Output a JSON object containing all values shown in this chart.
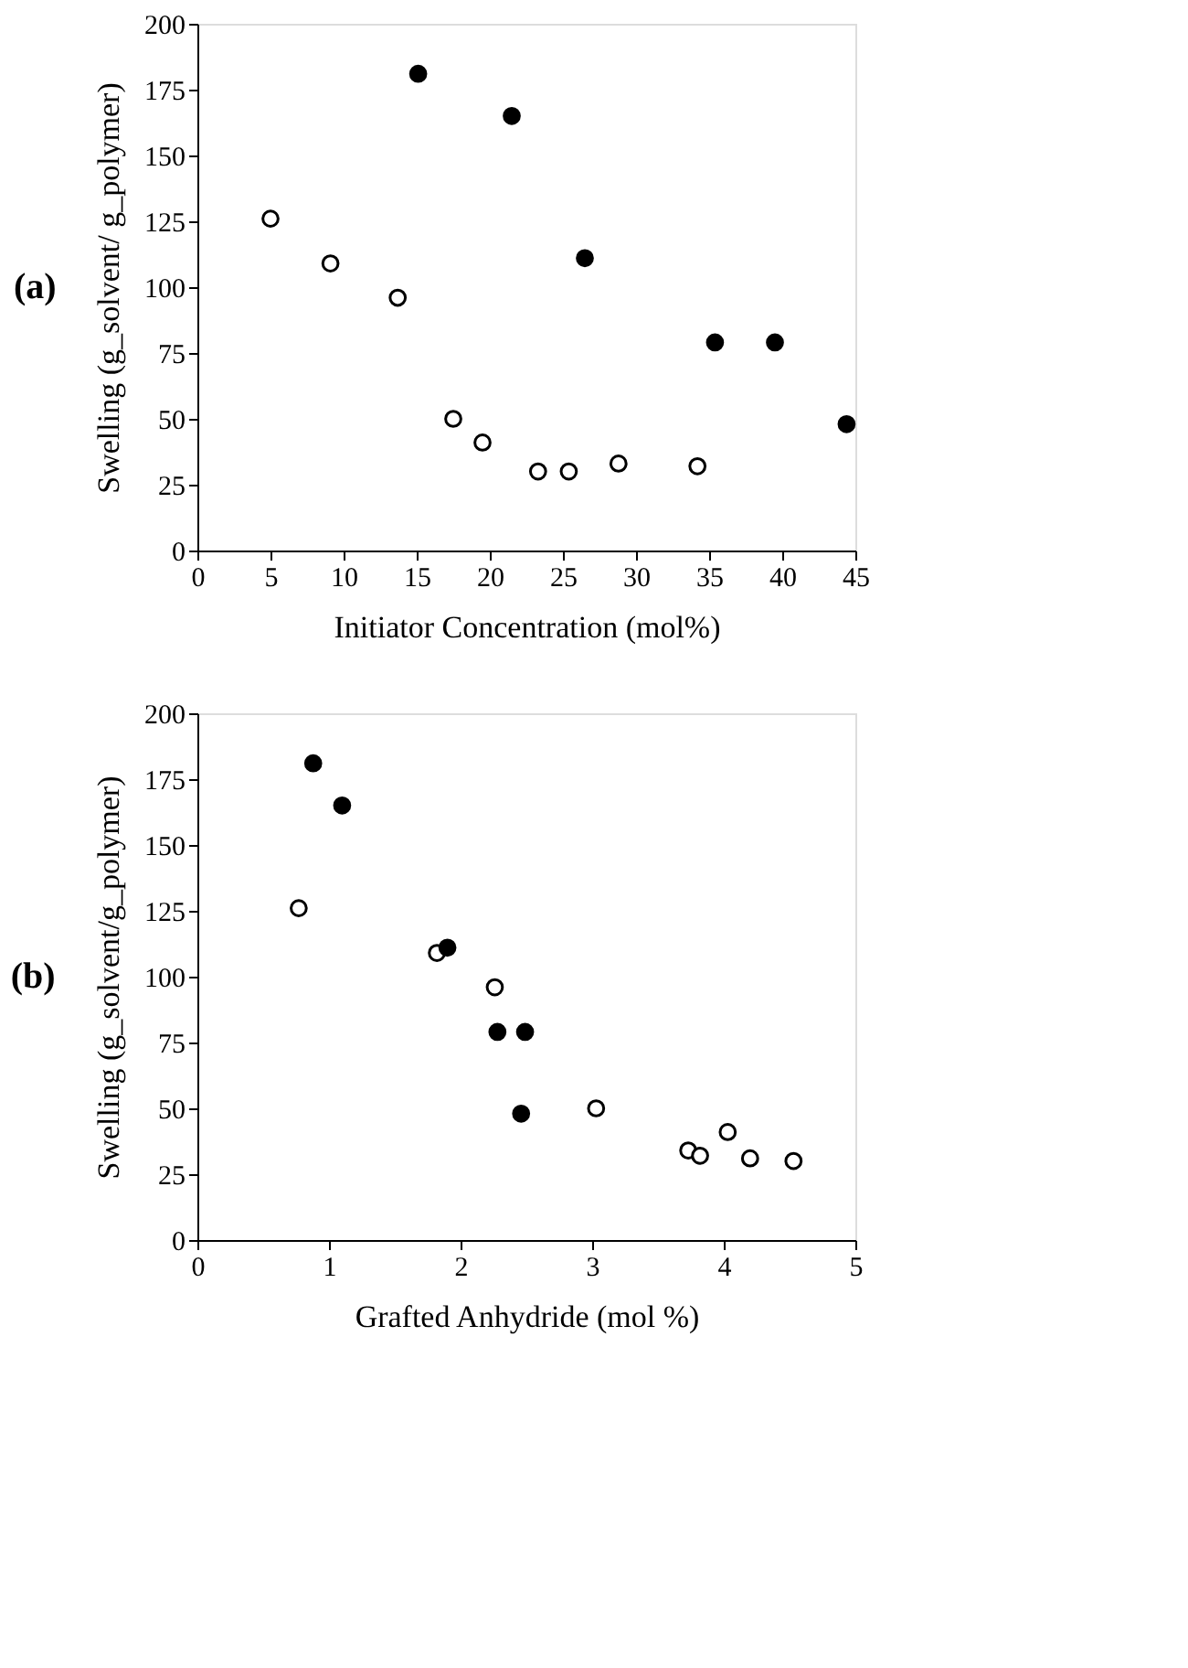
{
  "chart_data": [
    {
      "type": "scatter",
      "title": "(a)",
      "xlabel": "Initiator Concentration (mol%)",
      "ylabel": "Swelling  (g_solvent/ g_polymer)",
      "xlim": [
        0,
        45
      ],
      "xticks": [
        0,
        5,
        10,
        15,
        20,
        25,
        30,
        35,
        40,
        45
      ],
      "ylim": [
        0,
        200
      ],
      "yticks": [
        0,
        25,
        50,
        75,
        100,
        125,
        150,
        175,
        200
      ],
      "grid": false,
      "marker": "circle",
      "series": [
        {
          "color": "#ffffff",
          "x": [
            5,
            9.1,
            13.7,
            17.5,
            19.5,
            23.3,
            25.4,
            28.8,
            34.2
          ],
          "values": [
            126,
            109,
            96,
            50,
            41,
            30,
            30,
            33,
            32
          ]
        },
        {
          "color": "#000000",
          "x": [
            15.1,
            21.5,
            26.5,
            35.4,
            39.5,
            44.4
          ],
          "values": [
            181,
            165,
            111,
            79,
            79,
            48
          ]
        }
      ]
    },
    {
      "type": "scatter",
      "title": "(b)",
      "xlabel": "Grafted Anhydride (mol %)",
      "ylabel": "Swelling (g_solvent/g_polymer)",
      "xlim": [
        0,
        5
      ],
      "xticks": [
        0,
        1,
        2,
        3,
        4,
        5
      ],
      "ylim": [
        0,
        200
      ],
      "yticks": [
        0,
        25,
        50,
        75,
        100,
        125,
        150,
        175,
        200
      ],
      "grid": false,
      "marker": "circle",
      "series": [
        {
          "color": "#ffffff",
          "x": [
            0.77,
            1.82,
            2.26,
            3.03,
            3.73,
            3.82,
            4.03,
            4.2,
            4.53
          ],
          "values": [
            126,
            109,
            96,
            50,
            34,
            32,
            41,
            31,
            30
          ]
        },
        {
          "color": "#000000",
          "x": [
            0.88,
            1.1,
            1.9,
            2.28,
            2.49,
            2.46
          ],
          "values": [
            181,
            165,
            111,
            79,
            79,
            48
          ]
        }
      ]
    }
  ]
}
